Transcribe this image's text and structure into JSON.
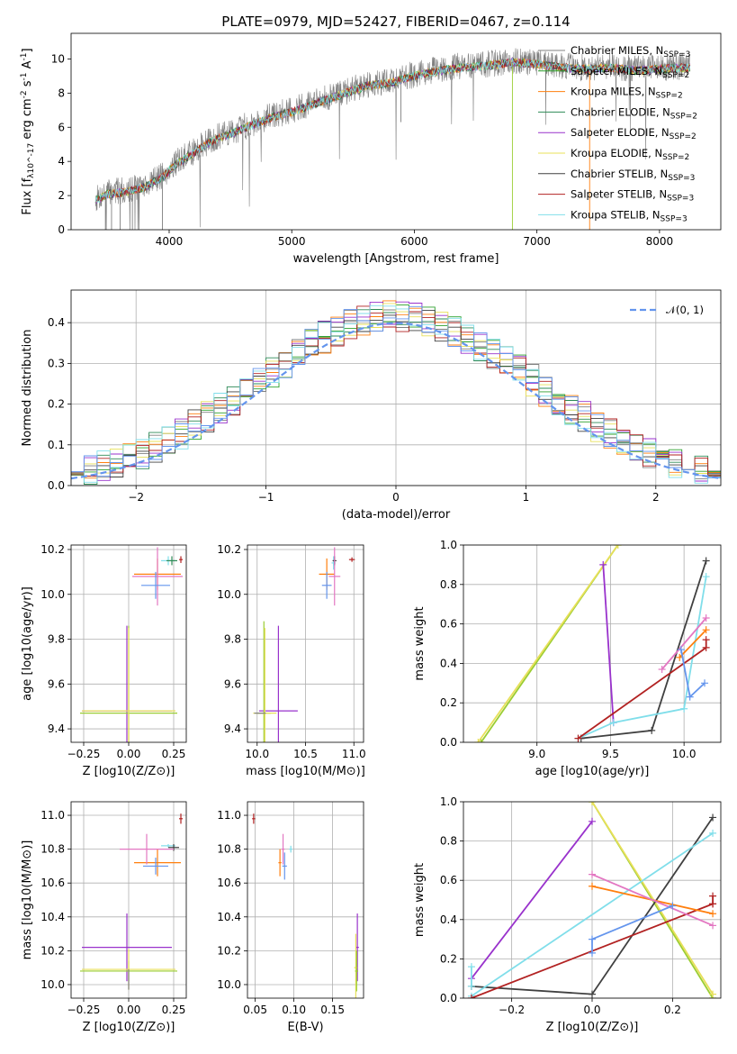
{
  "figure": {
    "title": "PLATE=0979, MJD=52427, FIBERID=0467, z=0.114"
  },
  "chart_data": [
    {
      "id": "spectrum",
      "type": "line",
      "title": "PLATE=0979, MJD=52427, FIBERID=0467, z=0.114",
      "xlabel": "wavelength [Angstrom, rest frame]",
      "ylabel": "Flux [f_λ10^-17 erg cm^-2 s^-1 A^-1]",
      "xlim": [
        3200,
        8500
      ],
      "ylim": [
        0,
        11.5
      ],
      "xticks": [
        4000,
        5000,
        6000,
        7000,
        8000
      ],
      "yticks": [
        0,
        2,
        4,
        6,
        8,
        10
      ],
      "grid": false,
      "legend_position": "top-right",
      "data_color": "#808080",
      "data_anchors": [
        [
          3400,
          1.8
        ],
        [
          3500,
          2.2
        ],
        [
          3650,
          2.3
        ],
        [
          3800,
          2.6
        ],
        [
          3950,
          3.2
        ],
        [
          4050,
          3.9
        ],
        [
          4200,
          4.6
        ],
        [
          4350,
          5.3
        ],
        [
          4500,
          5.7
        ],
        [
          4700,
          6.3
        ],
        [
          4850,
          6.7
        ],
        [
          5000,
          7.0
        ],
        [
          5200,
          7.5
        ],
        [
          5400,
          8.0
        ],
        [
          5600,
          8.5
        ],
        [
          5800,
          8.7
        ],
        [
          6000,
          9.1
        ],
        [
          6200,
          9.4
        ],
        [
          6400,
          9.6
        ],
        [
          6600,
          9.7
        ],
        [
          6800,
          9.9
        ],
        [
          7000,
          9.8
        ],
        [
          7200,
          9.6
        ],
        [
          7400,
          9.5
        ],
        [
          7600,
          9.6
        ],
        [
          7800,
          9.4
        ],
        [
          8000,
          9.5
        ],
        [
          8250,
          9.6
        ]
      ],
      "series": [
        {
          "name": "Chabrier MILES, N_SSP=3",
          "color": "#808080"
        },
        {
          "name": "Salpeter MILES, N_SSP=2",
          "color": "#2ca02c"
        },
        {
          "name": "Kroupa MILES, N_SSP=2",
          "color": "#ff7f0e"
        },
        {
          "name": "Chabrier ELODIE, N_SSP=2",
          "color": "#2e8b57"
        },
        {
          "name": "Salpeter ELODIE, N_SSP=2",
          "color": "#9932cc"
        },
        {
          "name": "Kroupa ELODIE, N_SSP=2",
          "color": "#e8e05a"
        },
        {
          "name": "Chabrier STELIB, N_SSP=3",
          "color": "#404040"
        },
        {
          "name": "Salpeter STELIB, N_SSP=3",
          "color": "#b22222"
        },
        {
          "name": "Kroupa STELIB, N_SSP=3",
          "color": "#80deea"
        }
      ]
    },
    {
      "id": "residuals",
      "type": "line",
      "xlabel": "(data-model)/error",
      "ylabel": "Normed distribution",
      "xlim": [
        -2.5,
        2.5
      ],
      "ylim": [
        0,
        0.48
      ],
      "xticks": [
        -2,
        -1,
        0,
        1,
        2
      ],
      "yticks": [
        0.0,
        0.1,
        0.2,
        0.3,
        0.4
      ],
      "grid": true,
      "legend_position": "top-right",
      "reference_curve": {
        "name": "𝒩(0, 1)",
        "color": "#6495ed",
        "style": "dashed"
      },
      "series_colors": [
        "#808080",
        "#2ca02c",
        "#ff7f0e",
        "#2e8b57",
        "#9932cc",
        "#e8e05a",
        "#404040",
        "#b22222",
        "#80deea",
        "#6495ed"
      ]
    },
    {
      "id": "age_vs_Z",
      "type": "scatter",
      "xlabel": "Z [log10(Z/Z⊙)]",
      "ylabel": "age  [log10(age/yr)]",
      "xlim": [
        -0.32,
        0.32
      ],
      "ylim": [
        9.34,
        10.22
      ],
      "xticks": [
        -0.25,
        0.0,
        0.25
      ],
      "yticks": [
        9.4,
        9.6,
        9.8,
        10.0,
        10.2
      ],
      "grid": true,
      "points": [
        {
          "x": 0.22,
          "y": 10.15,
          "xerr": 0.04,
          "yerr": 0.02,
          "color": "#80deea"
        },
        {
          "x": 0.24,
          "y": 10.15,
          "xerr": 0.03,
          "yerr": 0.02,
          "color": "#2e8b57"
        },
        {
          "x": 0.29,
          "y": 10.155,
          "xerr": 0.01,
          "yerr": 0.015,
          "color": "#b22222"
        },
        {
          "x": 0.16,
          "y": 10.09,
          "xerr": 0.13,
          "yerr": 0.07,
          "color": "#ff7f0e"
        },
        {
          "x": 0.16,
          "y": 10.08,
          "xerr": 0.14,
          "yerr": 0.13,
          "color": "#e377c2"
        },
        {
          "x": 0.15,
          "y": 10.04,
          "xerr": 0.08,
          "yerr": 0.06,
          "color": "#6495ed"
        },
        {
          "x": -0.01,
          "y": 9.48,
          "xerr": 0.25,
          "yerr": 0.38,
          "color": "#9932cc"
        },
        {
          "x": 0.0,
          "y": 9.47,
          "xerr": 0.27,
          "yerr": 0.39,
          "color": "#9acd32"
        },
        {
          "x": 0.0,
          "y": 9.48,
          "xerr": 0.26,
          "yerr": 0.37,
          "color": "#e8e05a"
        }
      ]
    },
    {
      "id": "age_vs_mass",
      "type": "scatter",
      "xlabel": "mass [log10(M/M⊙)]",
      "ylabel": "",
      "xlim": [
        9.9,
        11.1
      ],
      "ylim": [
        9.34,
        10.22
      ],
      "xticks": [
        10.0,
        10.5,
        11.0
      ],
      "yticks": [
        9.4,
        9.6,
        9.8,
        10.0,
        10.2
      ],
      "grid": true,
      "points": [
        {
          "x": 10.79,
          "y": 10.14,
          "xerr": 0.02,
          "yerr": 0.03,
          "color": "#80deea"
        },
        {
          "x": 10.8,
          "y": 10.15,
          "xerr": 0.02,
          "yerr": 0.02,
          "color": "#404040"
        },
        {
          "x": 10.98,
          "y": 10.155,
          "xerr": 0.03,
          "yerr": 0.01,
          "color": "#b22222"
        },
        {
          "x": 10.72,
          "y": 10.09,
          "xerr": 0.08,
          "yerr": 0.07,
          "color": "#ff7f0e"
        },
        {
          "x": 10.8,
          "y": 10.08,
          "xerr": 0.06,
          "yerr": 0.13,
          "color": "#e377c2"
        },
        {
          "x": 10.72,
          "y": 10.04,
          "xerr": 0.05,
          "yerr": 0.06,
          "color": "#6495ed"
        },
        {
          "x": 10.22,
          "y": 9.48,
          "xerr": 0.2,
          "yerr": 0.38,
          "color": "#9932cc"
        },
        {
          "x": 10.07,
          "y": 9.47,
          "xerr": 0.07,
          "yerr": 0.41,
          "color": "#9acd32"
        },
        {
          "x": 10.08,
          "y": 9.47,
          "xerr": 0.12,
          "yerr": 0.38,
          "color": "#e8e05a"
        },
        {
          "x": 10.03,
          "y": 9.47,
          "xerr": 0.06,
          "yerr": 0.0,
          "color": "#808080"
        }
      ]
    },
    {
      "id": "massweight_vs_age",
      "type": "line",
      "xlabel": "age  [log10(age/yr)]",
      "ylabel": "mass weight",
      "xlim": [
        8.5,
        10.25
      ],
      "ylim": [
        0.0,
        1.0
      ],
      "xticks": [
        9.0,
        9.5,
        10.0
      ],
      "yticks": [
        0.0,
        0.2,
        0.4,
        0.6,
        0.8,
        1.0
      ],
      "grid": true,
      "series": [
        {
          "color": "#9acd32",
          "x": [
            8.62,
            9.55
          ],
          "y": [
            0.0,
            1.0
          ]
        },
        {
          "color": "#e8e05a",
          "x": [
            8.6,
            9.55
          ],
          "y": [
            0.0,
            1.0
          ]
        },
        {
          "color": "#9932cc",
          "x": [
            9.45,
            9.52
          ],
          "y": [
            0.9,
            0.1
          ]
        },
        {
          "color": "#404040",
          "x": [
            9.3,
            9.78,
            10.15
          ],
          "y": [
            0.02,
            0.06,
            0.92
          ]
        },
        {
          "color": "#80deea",
          "x": [
            9.28,
            9.52,
            10.0,
            10.15
          ],
          "y": [
            0.02,
            0.1,
            0.17,
            0.84
          ]
        },
        {
          "color": "#b22222",
          "x": [
            9.28,
            10.15,
            10.15
          ],
          "y": [
            0.02,
            0.48,
            0.52
          ]
        },
        {
          "color": "#ff7f0e",
          "x": [
            9.97,
            10.15
          ],
          "y": [
            0.43,
            0.57
          ]
        },
        {
          "color": "#e377c2",
          "x": [
            9.85,
            10.15
          ],
          "y": [
            0.37,
            0.63
          ]
        },
        {
          "color": "#6495ed",
          "x": [
            9.98,
            10.04,
            10.14
          ],
          "y": [
            0.47,
            0.23,
            0.3
          ]
        }
      ]
    },
    {
      "id": "mass_vs_Z",
      "type": "scatter",
      "xlabel": "Z [log10(Z/Z⊙)]",
      "ylabel": "mass [log10(M/M⊙)]",
      "xlim": [
        -0.32,
        0.32
      ],
      "ylim": [
        9.92,
        11.08
      ],
      "xticks": [
        -0.25,
        0.0,
        0.25
      ],
      "yticks": [
        10.0,
        10.2,
        10.4,
        10.6,
        10.8,
        11.0
      ],
      "grid": true,
      "points": [
        {
          "x": 0.22,
          "y": 10.82,
          "xerr": 0.04,
          "yerr": 0.01,
          "color": "#80deea"
        },
        {
          "x": 0.25,
          "y": 10.81,
          "xerr": 0.03,
          "yerr": 0.02,
          "color": "#404040"
        },
        {
          "x": 0.29,
          "y": 10.98,
          "xerr": 0.01,
          "yerr": 0.03,
          "color": "#b22222"
        },
        {
          "x": 0.16,
          "y": 10.72,
          "xerr": 0.13,
          "yerr": 0.08,
          "color": "#ff7f0e"
        },
        {
          "x": 0.1,
          "y": 10.8,
          "xerr": 0.15,
          "yerr": 0.09,
          "color": "#e377c2"
        },
        {
          "x": 0.15,
          "y": 10.7,
          "xerr": 0.07,
          "yerr": 0.05,
          "color": "#6495ed"
        },
        {
          "x": -0.01,
          "y": 10.22,
          "xerr": 0.25,
          "yerr": 0.2,
          "color": "#9932cc"
        },
        {
          "x": 0.0,
          "y": 10.08,
          "xerr": 0.27,
          "yerr": 0.06,
          "color": "#9acd32"
        },
        {
          "x": 0.0,
          "y": 10.09,
          "xerr": 0.26,
          "yerr": 0.12,
          "color": "#e8e05a"
        },
        {
          "x": 0.0,
          "y": 10.03,
          "xerr": 0.0,
          "yerr": 0.06,
          "color": "#808080"
        }
      ]
    },
    {
      "id": "mass_vs_EBV",
      "type": "scatter",
      "xlabel": "E(B-V)",
      "ylabel": "",
      "xlim": [
        0.04,
        0.19
      ],
      "ylim": [
        9.92,
        11.08
      ],
      "xticks": [
        0.05,
        0.1,
        0.15
      ],
      "yticks": [
        10.0,
        10.2,
        10.4,
        10.6,
        10.8,
        11.0
      ],
      "grid": true,
      "points": [
        {
          "x": 0.048,
          "y": 10.98,
          "xerr": 0.002,
          "yerr": 0.03,
          "color": "#b22222"
        },
        {
          "x": 0.082,
          "y": 10.72,
          "xerr": 0.002,
          "yerr": 0.08,
          "color": "#ff7f0e"
        },
        {
          "x": 0.086,
          "y": 10.8,
          "xerr": 0.002,
          "yerr": 0.09,
          "color": "#e377c2"
        },
        {
          "x": 0.088,
          "y": 10.7,
          "xerr": 0.003,
          "yerr": 0.08,
          "color": "#6495ed"
        },
        {
          "x": 0.096,
          "y": 10.8,
          "xerr": 0.002,
          "yerr": 0.02,
          "color": "#80deea"
        },
        {
          "x": 0.182,
          "y": 10.22,
          "xerr": 0.002,
          "yerr": 0.2,
          "color": "#9932cc"
        },
        {
          "x": 0.18,
          "y": 10.1,
          "xerr": 0.002,
          "yerr": 0.2,
          "color": "#e8e05a"
        },
        {
          "x": 0.181,
          "y": 10.08,
          "xerr": 0.002,
          "yerr": 0.12,
          "color": "#9acd32"
        }
      ]
    },
    {
      "id": "massweight_vs_Z",
      "type": "line",
      "xlabel": "Z [log10(Z/Z⊙)]",
      "ylabel": "mass weight",
      "xlim": [
        -0.32,
        0.32
      ],
      "ylim": [
        0.0,
        1.0
      ],
      "xticks": [
        -0.2,
        0.0,
        0.2
      ],
      "yticks": [
        0.0,
        0.2,
        0.4,
        0.6,
        0.8,
        1.0
      ],
      "grid": true,
      "series": [
        {
          "color": "#9932cc",
          "x": [
            -0.3,
            0.0
          ],
          "y": [
            0.1,
            0.9
          ]
        },
        {
          "color": "#9acd32",
          "x": [
            0.0,
            0.3
          ],
          "y": [
            1.0,
            0.0
          ]
        },
        {
          "color": "#e8e05a",
          "x": [
            0.0,
            0.3
          ],
          "y": [
            1.0,
            0.02
          ]
        },
        {
          "color": "#404040",
          "x": [
            -0.3,
            0.0,
            0.3
          ],
          "y": [
            0.06,
            0.02,
            0.92
          ]
        },
        {
          "color": "#80deea",
          "x": [
            -0.3,
            0.3
          ],
          "y": [
            0.01,
            0.84
          ]
        },
        {
          "color": "#80deea",
          "x": [
            -0.3,
            -0.3
          ],
          "y": [
            0.06,
            0.16
          ]
        },
        {
          "color": "#b22222",
          "x": [
            -0.3,
            0.3
          ],
          "y": [
            0.0,
            0.48
          ]
        },
        {
          "color": "#b22222",
          "x": [
            0.3,
            0.3
          ],
          "y": [
            0.48,
            0.52
          ]
        },
        {
          "color": "#ff7f0e",
          "x": [
            0.0,
            0.3
          ],
          "y": [
            0.57,
            0.43
          ]
        },
        {
          "color": "#e377c2",
          "x": [
            0.0,
            0.3
          ],
          "y": [
            0.63,
            0.37
          ]
        },
        {
          "color": "#6495ed",
          "x": [
            0.0,
            0.0,
            0.2
          ],
          "y": [
            0.23,
            0.3,
            0.47
          ]
        }
      ]
    }
  ]
}
